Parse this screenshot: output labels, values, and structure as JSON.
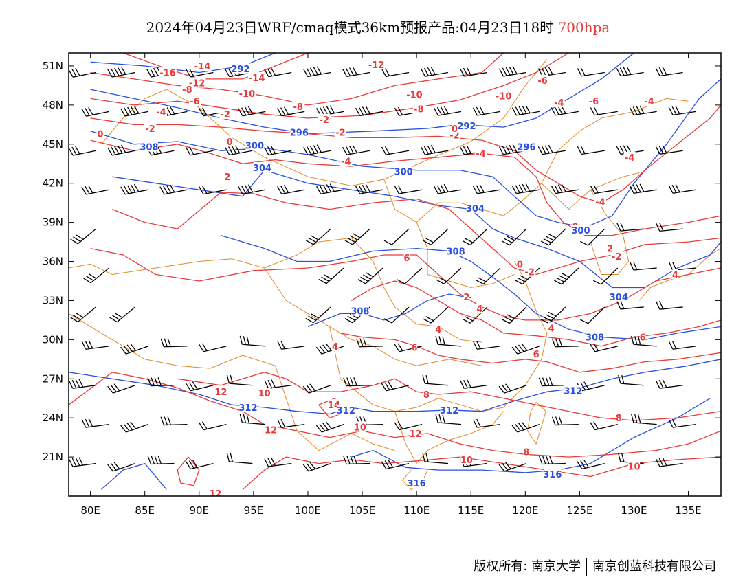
{
  "title": {
    "main": "2024年04月23日WRF/cmaq模式36km预报产品:04月23日18时",
    "level": "700hpa"
  },
  "axes": {
    "lat_ticks": [
      "51N",
      "48N",
      "45N",
      "42N",
      "39N",
      "36N",
      "33N",
      "30N",
      "27N",
      "24N",
      "21N"
    ],
    "lat_values": [
      51,
      48,
      45,
      42,
      39,
      36,
      33,
      30,
      27,
      24,
      21
    ],
    "lon_ticks": [
      "80E",
      "85E",
      "90E",
      "95E",
      "100E",
      "105E",
      "110E",
      "115E",
      "120E",
      "125E",
      "130E",
      "135E"
    ],
    "lon_values": [
      80,
      85,
      90,
      95,
      100,
      105,
      110,
      115,
      120,
      125,
      130,
      135
    ],
    "lon_range": [
      78,
      138
    ],
    "lat_range": [
      18,
      52
    ]
  },
  "footer": {
    "left": "版权所有: 南京大学",
    "right": "南京创蓝科技有限公司"
  },
  "colors": {
    "temperature": "#e83a3a",
    "height": "#2a4fe0",
    "border": "#e08a2a",
    "wind": "#000000",
    "title_level": "#e83a3a"
  },
  "temperature_labels": [
    {
      "text": "-16",
      "lon": 87.1,
      "lat": 50.5
    },
    {
      "text": "-14",
      "lon": 90.3,
      "lat": 51.0
    },
    {
      "text": "-14",
      "lon": 95.3,
      "lat": 50.1
    },
    {
      "text": "-12",
      "lon": 89.8,
      "lat": 49.7
    },
    {
      "text": "-12",
      "lon": 106.3,
      "lat": 51.1
    },
    {
      "text": "-10",
      "lon": 94.4,
      "lat": 48.9
    },
    {
      "text": "-10",
      "lon": 109.8,
      "lat": 48.8
    },
    {
      "text": "-10",
      "lon": 118.0,
      "lat": 48.7
    },
    {
      "text": "-8",
      "lon": 88.9,
      "lat": 49.2
    },
    {
      "text": "-8",
      "lon": 99.1,
      "lat": 47.9
    },
    {
      "text": "-8",
      "lon": 110.2,
      "lat": 47.7
    },
    {
      "text": "-6",
      "lon": 89.6,
      "lat": 48.3
    },
    {
      "text": "-6",
      "lon": 121.6,
      "lat": 49.9
    },
    {
      "text": "-6",
      "lon": 126.3,
      "lat": 48.3
    },
    {
      "text": "-4",
      "lon": 86.5,
      "lat": 47.5
    },
    {
      "text": "-4",
      "lon": 123.1,
      "lat": 48.2
    },
    {
      "text": "-4",
      "lon": 131.4,
      "lat": 48.3
    },
    {
      "text": "-4",
      "lon": 115.9,
      "lat": 44.3
    },
    {
      "text": "-4",
      "lon": 129.6,
      "lat": 44.0
    },
    {
      "text": "-4",
      "lon": 126.9,
      "lat": 40.6
    },
    {
      "text": "-2",
      "lon": 92.4,
      "lat": 47.3
    },
    {
      "text": "-2",
      "lon": 85.5,
      "lat": 46.2
    },
    {
      "text": "-2",
      "lon": 103.0,
      "lat": 45.9
    },
    {
      "text": "-2",
      "lon": 113.5,
      "lat": 45.7
    },
    {
      "text": "-2",
      "lon": 120.4,
      "lat": 35.2
    },
    {
      "text": "-2",
      "lon": 128.4,
      "lat": 36.4
    },
    {
      "text": "-4",
      "lon": 103.5,
      "lat": 43.7
    },
    {
      "text": "-2",
      "lon": 101.5,
      "lat": 46.9
    },
    {
      "text": "0",
      "lon": 80.9,
      "lat": 45.8
    },
    {
      "text": "0",
      "lon": 92.8,
      "lat": 45.2
    },
    {
      "text": "0",
      "lon": 113.5,
      "lat": 46.2
    },
    {
      "text": "0",
      "lon": 124.6,
      "lat": 38.7
    },
    {
      "text": "0",
      "lon": 119.5,
      "lat": 35.8
    },
    {
      "text": "2",
      "lon": 92.6,
      "lat": 42.5
    },
    {
      "text": "2",
      "lon": 114.6,
      "lat": 33.3
    },
    {
      "text": "2",
      "lon": 127.8,
      "lat": 37.0
    },
    {
      "text": "4",
      "lon": 115.8,
      "lat": 32.4
    },
    {
      "text": "4",
      "lon": 112.0,
      "lat": 30.8
    },
    {
      "text": "4",
      "lon": 102.5,
      "lat": 29.5
    },
    {
      "text": "4",
      "lon": 122.4,
      "lat": 30.9
    },
    {
      "text": "4",
      "lon": 133.8,
      "lat": 35.0
    },
    {
      "text": "6",
      "lon": 109.1,
      "lat": 36.3
    },
    {
      "text": "6",
      "lon": 109.8,
      "lat": 29.4
    },
    {
      "text": "6",
      "lon": 121.0,
      "lat": 28.9
    },
    {
      "text": "6",
      "lon": 130.8,
      "lat": 30.2
    },
    {
      "text": "8",
      "lon": 110.9,
      "lat": 25.8
    },
    {
      "text": "8",
      "lon": 128.6,
      "lat": 24.0
    },
    {
      "text": "8",
      "lon": 120.1,
      "lat": 21.4
    },
    {
      "text": "10",
      "lon": 96.0,
      "lat": 25.9
    },
    {
      "text": "10",
      "lon": 114.6,
      "lat": 20.8
    },
    {
      "text": "10",
      "lon": 130.0,
      "lat": 20.3
    },
    {
      "text": "10",
      "lon": 104.8,
      "lat": 23.3
    },
    {
      "text": "12",
      "lon": 92.0,
      "lat": 26.0
    },
    {
      "text": "12",
      "lon": 96.6,
      "lat": 23.1
    },
    {
      "text": "12",
      "lon": 109.9,
      "lat": 22.8
    },
    {
      "text": "12",
      "lon": 91.5,
      "lat": 18.2
    },
    {
      "text": "14",
      "lon": 102.4,
      "lat": 25.0
    }
  ],
  "height_labels": [
    {
      "text": "296",
      "lon": 99.2,
      "lat": 45.9
    },
    {
      "text": "296",
      "lon": 120.1,
      "lat": 44.8
    },
    {
      "text": "292",
      "lon": 93.8,
      "lat": 50.8
    },
    {
      "text": "292",
      "lon": 114.6,
      "lat": 46.4
    },
    {
      "text": "300",
      "lon": 95.1,
      "lat": 44.9
    },
    {
      "text": "300",
      "lon": 108.8,
      "lat": 42.9
    },
    {
      "text": "300",
      "lon": 125.1,
      "lat": 38.4
    },
    {
      "text": "304",
      "lon": 95.8,
      "lat": 43.2
    },
    {
      "text": "304",
      "lon": 115.4,
      "lat": 40.1
    },
    {
      "text": "304",
      "lon": 128.6,
      "lat": 33.3
    },
    {
      "text": "308",
      "lon": 85.4,
      "lat": 44.8
    },
    {
      "text": "308",
      "lon": 113.6,
      "lat": 36.8
    },
    {
      "text": "308",
      "lon": 104.8,
      "lat": 32.2
    },
    {
      "text": "308",
      "lon": 126.4,
      "lat": 30.2
    },
    {
      "text": "312",
      "lon": 94.5,
      "lat": 24.8
    },
    {
      "text": "312",
      "lon": 103.5,
      "lat": 24.6
    },
    {
      "text": "312",
      "lon": 113.0,
      "lat": 24.6
    },
    {
      "text": "312",
      "lon": 124.4,
      "lat": 26.1
    },
    {
      "text": "316",
      "lon": 110.0,
      "lat": 19.0
    },
    {
      "text": "316",
      "lon": 122.5,
      "lat": 19.7
    }
  ]
}
